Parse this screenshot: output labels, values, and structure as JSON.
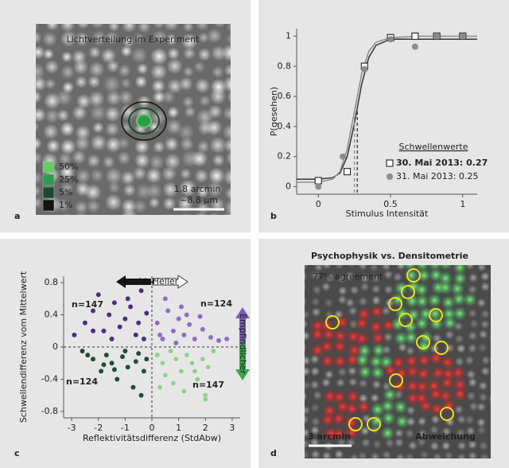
{
  "panel_labels": [
    "a",
    "b",
    "c",
    "d"
  ],
  "panel_a": {
    "title": "Lichtverteilung im Experiment",
    "legend": [
      {
        "label": "50%",
        "color": "#66cc66"
      },
      {
        "label": "25%",
        "color": "#2e9a4c"
      },
      {
        "label": "5%",
        "color": "#1d4a2c"
      },
      {
        "label": "1%",
        "color": "#141414"
      }
    ],
    "scale_bar": [
      "1.8 arcmin",
      "~8.8 µm"
    ]
  },
  "chart_data": [
    {
      "type": "line",
      "xlabel": "Stimulus Intensität",
      "ylabel": "P(gesehen)",
      "xlim": [
        -0.15,
        1.1
      ],
      "xticks": [
        0,
        0.5,
        1
      ],
      "ylim": [
        -0.05,
        1.05
      ],
      "yticks": [
        0,
        0.2,
        0.4,
        0.6,
        0.8,
        1
      ],
      "legend_title": "Schwellenwerte",
      "fit_x": [
        -0.15,
        0,
        0.1,
        0.15,
        0.2,
        0.25,
        0.3,
        0.35,
        0.4,
        0.5,
        0.7,
        1.1
      ],
      "series": [
        {
          "name": "30. Mai 2013: 0.27",
          "color": "#333333",
          "marker": "square",
          "threshold": 0.27,
          "x": [
            0,
            0.2,
            0.32,
            0.5,
            0.67,
            0.82,
            1
          ],
          "values": [
            0.04,
            0.1,
            0.8,
            0.99,
            1,
            1,
            1
          ],
          "fit_values": [
            0.05,
            0.05,
            0.06,
            0.09,
            0.2,
            0.42,
            0.68,
            0.86,
            0.94,
            0.98,
            0.98,
            0.98
          ]
        },
        {
          "name": "31. Mai 2013: 0.25",
          "color": "#8c8c8c",
          "marker": "circle",
          "threshold": 0.25,
          "x": [
            0,
            0.17,
            0.32,
            0.5,
            0.67,
            0.82,
            1
          ],
          "values": [
            0,
            0.2,
            0.78,
            0.98,
            0.93,
            1,
            1
          ],
          "fit_values": [
            0.03,
            0.03,
            0.05,
            0.1,
            0.25,
            0.5,
            0.75,
            0.9,
            0.96,
            0.99,
            1,
            1
          ]
        }
      ]
    },
    {
      "type": "scatter",
      "xlabel": "Reflektivitätsdifferenz (StdAbw)",
      "ylabel": "Schwellendifferenz vom Mittelwert",
      "xlim": [
        -3.3,
        3.3
      ],
      "xticks": [
        -3,
        -2,
        -1,
        0,
        1,
        2,
        3
      ],
      "ylim": [
        -0.88,
        0.88
      ],
      "yticks": [
        -0.8,
        -0.4,
        0,
        0.4,
        0.8
      ],
      "annotations": [
        "n=147",
        "n=124",
        "n=124",
        "n=147"
      ],
      "arrow_labels": [
        "Dunkler",
        "Heller",
        "Empfindlicher"
      ],
      "series": [
        {
          "color": "#4a2e80",
          "x": [
            -2.9,
            -2.5,
            -2.2,
            -2.0,
            -1.8,
            -1.6,
            -1.4,
            -1.2,
            -1.0,
            -0.8,
            -0.6,
            -0.5,
            -0.3,
            -0.2,
            -1.5,
            -0.9,
            -2.2,
            -0.4
          ],
          "values": [
            0.15,
            0.3,
            0.45,
            0.65,
            0.2,
            0.4,
            0.55,
            0.25,
            0.35,
            0.5,
            0.15,
            0.3,
            0.1,
            0.42,
            0.1,
            0.6,
            0.2,
            0.7
          ]
        },
        {
          "color": "#8a6cc0",
          "x": [
            0.2,
            0.4,
            0.6,
            0.8,
            1.0,
            1.2,
            1.4,
            1.6,
            1.9,
            2.2,
            2.5,
            0.5,
            1.1,
            1.8,
            0.3,
            0.9,
            2.8,
            1.3
          ],
          "values": [
            0.3,
            0.1,
            0.45,
            0.2,
            0.35,
            0.15,
            0.28,
            0.1,
            0.22,
            0.12,
            0.08,
            0.6,
            0.5,
            0.38,
            0.15,
            0.05,
            0.1,
            0.4
          ]
        },
        {
          "color": "#1d4f34",
          "x": [
            -2.6,
            -2.2,
            -1.9,
            -1.7,
            -1.5,
            -1.3,
            -1.1,
            -0.9,
            -0.7,
            -0.5,
            -0.3,
            -0.2,
            -1.8,
            -1.0,
            -0.6,
            -2.4,
            -1.4,
            -0.4
          ],
          "values": [
            -0.05,
            -0.15,
            -0.3,
            -0.1,
            -0.2,
            -0.4,
            -0.12,
            -0.25,
            -0.5,
            -0.08,
            -0.3,
            -0.15,
            -0.22,
            -0.05,
            -0.18,
            -0.1,
            -0.28,
            -0.6
          ]
        },
        {
          "color": "#8fd08a",
          "x": [
            0.2,
            0.4,
            0.5,
            0.7,
            0.9,
            1.1,
            1.3,
            1.5,
            1.7,
            1.9,
            2.1,
            2.3,
            0.3,
            0.8,
            1.2,
            1.6,
            2.0,
            2.0
          ],
          "values": [
            -0.1,
            -0.2,
            -0.35,
            -0.05,
            -0.15,
            -0.3,
            -0.1,
            -0.2,
            -0.4,
            -0.15,
            -0.25,
            -0.05,
            -0.5,
            -0.45,
            -0.55,
            -0.3,
            -0.6,
            -0.65
          ]
        }
      ]
    }
  ],
  "panel_d": {
    "title": "Psychophysik vs. Densitometrie",
    "agreement": "77% agreement",
    "scale_bar": "3 arcmin",
    "annotation": "Abweichung"
  }
}
